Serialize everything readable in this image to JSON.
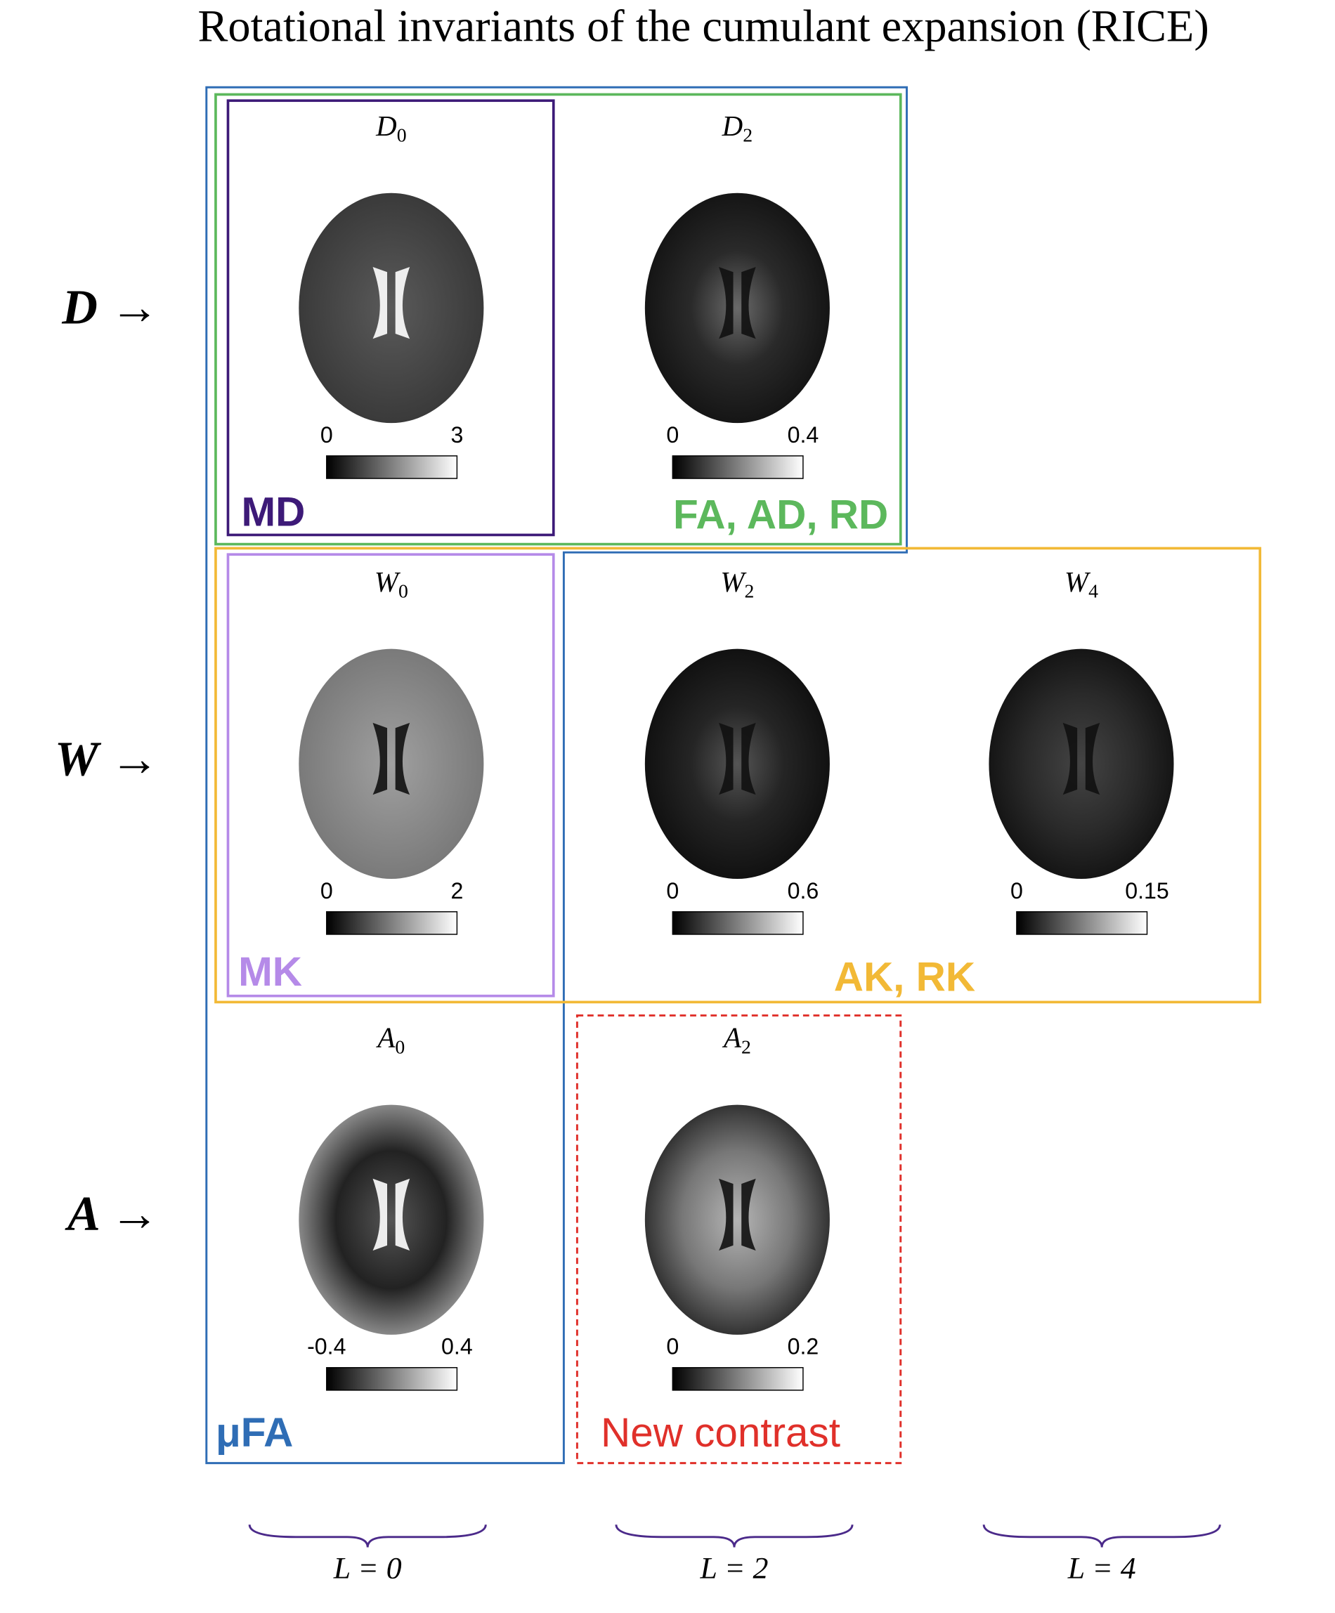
{
  "title": "Rotational invariants of the cumulant expansion (RICE)",
  "rows": [
    "D →",
    "W →",
    "A →"
  ],
  "panels": [
    {
      "symbol": "D",
      "index": 0,
      "colorbar": [
        0,
        3
      ]
    },
    {
      "symbol": "D",
      "index": 2,
      "colorbar": [
        0,
        0.4
      ]
    },
    {
      "symbol": "W",
      "index": 0,
      "colorbar": [
        0,
        2
      ]
    },
    {
      "symbol": "W",
      "index": 2,
      "colorbar": [
        0,
        0.6
      ]
    },
    {
      "symbol": "W",
      "index": 4,
      "colorbar": [
        0,
        0.15
      ]
    },
    {
      "symbol": "A",
      "index": 0,
      "colorbar": [
        -0.4,
        0.4
      ]
    },
    {
      "symbol": "A",
      "index": 2,
      "colorbar": [
        0,
        0.2
      ]
    }
  ],
  "groups": [
    "MD",
    "FA, AD, RD",
    "MK",
    "AK, RK",
    "μFA",
    "New contrast"
  ],
  "columns": [
    "L = 0",
    "L = 2",
    "L = 4"
  ]
}
